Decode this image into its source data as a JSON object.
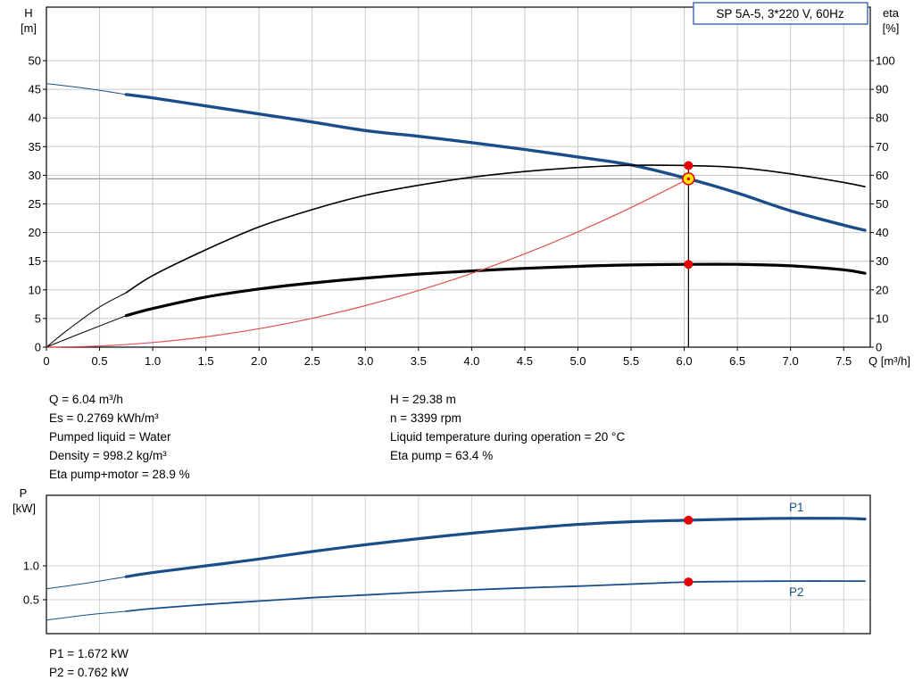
{
  "colors": {
    "curve_blue": "#1a4e8a",
    "curve_black": "#000000",
    "curve_red": "#e05050",
    "marker_red": "#e60000",
    "marker_yellow": "#ffe800",
    "grid": "#c8c8c8",
    "grid_light": "#d4d4d4",
    "axis": "#000000",
    "hline": "#999999",
    "title_border": "#4a6fb5"
  },
  "info": {
    "left": [
      "Q = 6.04 m³/h",
      "Es = 0.2769 kWh/m³",
      "Pumped liquid = Water",
      "Density = 998.2 kg/m³",
      "Eta pump+motor = 28.9 %"
    ],
    "right": [
      "H = 29.38 m",
      "n = 3399 rpm",
      "Liquid temperature during operation = 20 °C",
      "Eta pump = 63.4 %"
    ],
    "power": [
      "P1 = 1.672 kW",
      "P2 = 0.762 kW"
    ]
  },
  "chart_data": [
    {
      "type": "line",
      "title": "SP 5A-5, 3*220 V, 60Hz",
      "x_label": "Q [m³/h]",
      "x_range": [
        0,
        7.75
      ],
      "x_tick_labels": [
        "0",
        "0.5",
        "1.0",
        "1.5",
        "2.0",
        "2.5",
        "3.0",
        "3.5",
        "4.0",
        "4.5",
        "5.0",
        "5.5",
        "6.0",
        "6.5",
        "7.0",
        "7.5"
      ],
      "y_left_label": [
        "H",
        "[m]"
      ],
      "y_left_ticks": [
        0,
        5,
        10,
        15,
        20,
        25,
        30,
        35,
        40,
        45,
        50
      ],
      "y_right_label": [
        "eta",
        "[%]"
      ],
      "y_right_ticks": [
        0,
        10,
        20,
        30,
        40,
        50,
        60,
        70,
        80,
        90,
        100
      ],
      "grid": true,
      "duty_point": {
        "q": 6.04,
        "h": 29.38,
        "eta_pct": 63.4,
        "eta_total_pct": 28.9
      },
      "series": [
        {
          "name": "head-curve",
          "axis": "left",
          "color": "curve_blue",
          "width": 3.4,
          "lead": [
            [
              0,
              46
            ],
            [
              0.4,
              45.1
            ],
            [
              0.75,
              44.1
            ]
          ],
          "points": [
            [
              0.75,
              44.1
            ],
            [
              1,
              43.5
            ],
            [
              1.5,
              42.1
            ],
            [
              2,
              40.7
            ],
            [
              2.5,
              39.3
            ],
            [
              3,
              37.8
            ],
            [
              3.5,
              36.8
            ],
            [
              4,
              35.7
            ],
            [
              4.5,
              34.5
            ],
            [
              5,
              33.2
            ],
            [
              5.5,
              31.8
            ],
            [
              6.04,
              29.38
            ],
            [
              6.5,
              26.9
            ],
            [
              7,
              23.8
            ],
            [
              7.5,
              21.3
            ],
            [
              7.7,
              20.4
            ]
          ]
        },
        {
          "name": "eta-pump-curve",
          "axis": "right",
          "color": "curve_black",
          "width": 1.6,
          "lead": [
            [
              0,
              0
            ],
            [
              0.2,
              6
            ],
            [
              0.5,
              14
            ],
            [
              0.75,
              19
            ]
          ],
          "points": [
            [
              0.75,
              19
            ],
            [
              1,
              25
            ],
            [
              1.5,
              34
            ],
            [
              2,
              42
            ],
            [
              2.5,
              48
            ],
            [
              3,
              53
            ],
            [
              3.5,
              56.5
            ],
            [
              4,
              59.3
            ],
            [
              4.5,
              61.3
            ],
            [
              5,
              62.7
            ],
            [
              5.5,
              63.5
            ],
            [
              6.04,
              63.4
            ],
            [
              6.5,
              62.7
            ],
            [
              7,
              60.5
            ],
            [
              7.5,
              57.5
            ],
            [
              7.7,
              56
            ]
          ]
        },
        {
          "name": "eta-pump-motor-curve",
          "axis": "right",
          "color": "curve_black",
          "width": 3.2,
          "lead": [
            [
              0,
              0
            ],
            [
              0.3,
              4.5
            ],
            [
              0.75,
              11
            ]
          ],
          "points": [
            [
              0.75,
              11
            ],
            [
              1,
              13.5
            ],
            [
              1.5,
              17.5
            ],
            [
              2,
              20.3
            ],
            [
              2.5,
              22.4
            ],
            [
              3,
              24.1
            ],
            [
              3.5,
              25.5
            ],
            [
              4,
              26.6
            ],
            [
              4.5,
              27.5
            ],
            [
              5,
              28.2
            ],
            [
              5.5,
              28.7
            ],
            [
              6.04,
              28.9
            ],
            [
              6.5,
              28.9
            ],
            [
              7,
              28.4
            ],
            [
              7.5,
              27
            ],
            [
              7.7,
              25.8
            ]
          ]
        },
        {
          "name": "system-curve",
          "axis": "left",
          "color": "curve_red",
          "width": 1.2,
          "points": [
            [
              0,
              0
            ],
            [
              0.5,
              0.2
            ],
            [
              1,
              0.81
            ],
            [
              1.5,
              1.81
            ],
            [
              2,
              3.22
            ],
            [
              2.5,
              5.03
            ],
            [
              3,
              7.25
            ],
            [
              3.5,
              9.87
            ],
            [
              4,
              12.88
            ],
            [
              4.5,
              16.3
            ],
            [
              5,
              20.13
            ],
            [
              5.5,
              24.36
            ],
            [
              6.04,
              29.38
            ]
          ]
        }
      ]
    },
    {
      "type": "line",
      "x_range": [
        0,
        7.75
      ],
      "y_label": [
        "P",
        "[kW]"
      ],
      "y_ticks": [
        0.5,
        1.0
      ],
      "y_tick_labels": [
        "0.5",
        "1.0"
      ],
      "grid": true,
      "duty_markers": [
        {
          "q": 6.04,
          "p": 1.672
        },
        {
          "q": 6.04,
          "p": 0.762
        }
      ],
      "series": [
        {
          "name": "p1-curve",
          "label": "P1",
          "label_side": "above",
          "color": "curve_blue",
          "width": 3.2,
          "lead": [
            [
              0,
              0.66
            ],
            [
              0.4,
              0.75
            ],
            [
              0.75,
              0.84
            ]
          ],
          "points": [
            [
              0.75,
              0.84
            ],
            [
              1,
              0.9
            ],
            [
              1.5,
              1.0
            ],
            [
              2,
              1.1
            ],
            [
              2.5,
              1.21
            ],
            [
              3,
              1.31
            ],
            [
              3.5,
              1.4
            ],
            [
              4,
              1.48
            ],
            [
              4.5,
              1.55
            ],
            [
              5,
              1.61
            ],
            [
              5.5,
              1.65
            ],
            [
              6.04,
              1.672
            ],
            [
              6.5,
              1.69
            ],
            [
              7,
              1.7
            ],
            [
              7.5,
              1.7
            ],
            [
              7.7,
              1.69
            ]
          ]
        },
        {
          "name": "p2-curve",
          "label": "P2",
          "label_side": "below",
          "color": "curve_blue",
          "width": 1.8,
          "lead": [
            [
              0,
              0.2
            ],
            [
              0.4,
              0.28
            ],
            [
              0.75,
              0.33
            ]
          ],
          "points": [
            [
              0.75,
              0.33
            ],
            [
              1,
              0.37
            ],
            [
              1.5,
              0.43
            ],
            [
              2,
              0.48
            ],
            [
              2.5,
              0.53
            ],
            [
              3,
              0.57
            ],
            [
              3.5,
              0.61
            ],
            [
              4,
              0.645
            ],
            [
              4.5,
              0.675
            ],
            [
              5,
              0.7
            ],
            [
              5.5,
              0.73
            ],
            [
              6.04,
              0.762
            ],
            [
              6.5,
              0.77
            ],
            [
              7,
              0.775
            ],
            [
              7.5,
              0.775
            ],
            [
              7.7,
              0.775
            ]
          ]
        }
      ]
    }
  ]
}
